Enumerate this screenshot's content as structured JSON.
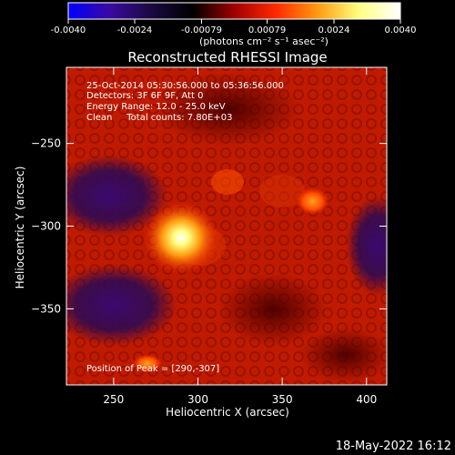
{
  "colorbar": {
    "ticks": [
      "-0.0040",
      "-0.0024",
      "-0.00079",
      "0.00079",
      "0.0024",
      "0.0040"
    ],
    "range": [
      -0.004,
      0.004
    ],
    "units_text": "(photons cm⁻² s⁻¹ asec⁻²)",
    "colors": [
      "#0000ff",
      "#3a0aa0",
      "#1a0a40",
      "#000000",
      "#a00000",
      "#ff2a00",
      "#ff9a10",
      "#ffff80",
      "#ffffff"
    ]
  },
  "chart_data": {
    "type": "heatmap",
    "title": "Reconstructed RHESSI Image",
    "xlabel": "Heliocentric X (arcsec)",
    "ylabel": "Heliocentric Y (arcsec)",
    "xlim": [
      222,
      412
    ],
    "ylim": [
      -396,
      -204
    ],
    "xticks": [
      250,
      300,
      350,
      400
    ],
    "yticks": [
      -250,
      -300,
      -350
    ],
    "xtick_labels": [
      "250",
      "300",
      "350",
      "400"
    ],
    "ytick_labels": [
      "−250",
      "−300",
      "−350"
    ],
    "annotations": [
      "25-Oct-2014 05:30:56.000 to 05:36:56.000",
      "Detectors: 3F 6F 9F, Att 0",
      "Energy Range: 12.0 - 25.0 keV",
      "Clean     Total counts: 7.80E+03"
    ],
    "peak_text": "Position of Peak = [290,-307]",
    "peak": [
      290,
      -307
    ],
    "secondary_source": [
      368,
      -285
    ],
    "minor_source": [
      270,
      -383
    ]
  },
  "footer": {
    "timestamp": "18-May-2022 16:12"
  }
}
